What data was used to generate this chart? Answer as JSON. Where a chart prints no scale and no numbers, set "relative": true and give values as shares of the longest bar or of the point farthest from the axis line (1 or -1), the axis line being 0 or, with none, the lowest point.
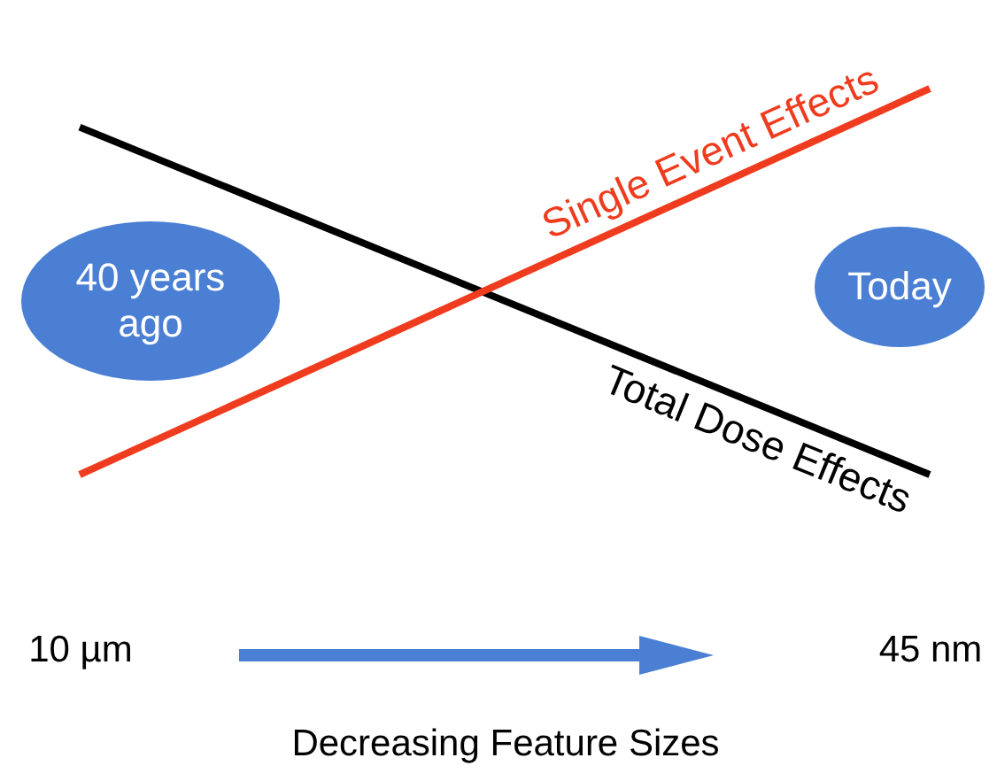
{
  "chart_data": {
    "type": "line",
    "relative": true,
    "categories": [
      "10 µm",
      "45 nm"
    ],
    "xlabel": "Decreasing Feature Sizes",
    "annotations": [
      "40 years ago",
      "Today"
    ],
    "series": [
      {
        "name": "Total Dose Effects",
        "color": "#000000",
        "values": [
          0.9,
          0
        ]
      },
      {
        "name": "Single Event Effects",
        "color": "#f03c1e",
        "values": [
          0,
          1
        ]
      }
    ]
  }
}
